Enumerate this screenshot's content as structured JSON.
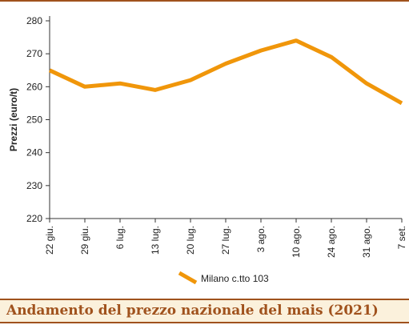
{
  "caption": "Andamento del prezzo nazionale del mais (2021)",
  "chart_data": {
    "type": "line",
    "categories": [
      "22 giu.",
      "29 giu.",
      "6 lug.",
      "13 lug.",
      "20 lug.",
      "27 lug.",
      "3 ago.",
      "10 ago.",
      "24 ago.",
      "31 ago.",
      "7 set."
    ],
    "series": [
      {
        "name": "Milano  c.tto 103",
        "values": [
          265,
          260,
          261,
          259,
          262,
          267,
          271,
          274,
          269,
          261,
          255
        ],
        "color": "#f0960a"
      }
    ],
    "title": "",
    "xlabel": "",
    "ylabel": "Prezzi (euro/t)",
    "ylim": [
      220,
      280
    ],
    "yticks": [
      220,
      230,
      240,
      250,
      260,
      270,
      280
    ],
    "grid": false,
    "legend_position": "bottom-center"
  }
}
